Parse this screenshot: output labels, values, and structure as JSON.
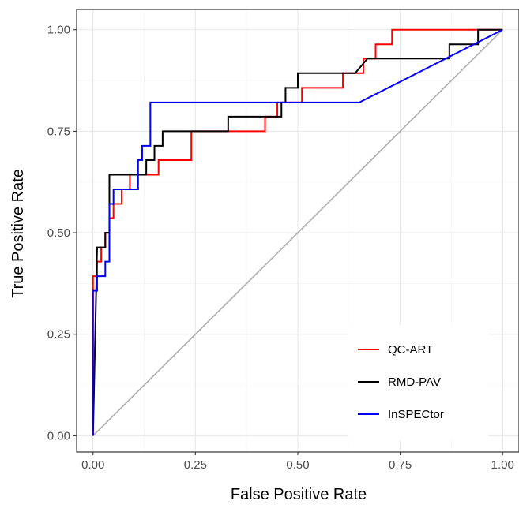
{
  "chart_data": {
    "type": "line",
    "title": "",
    "xlabel": "False Positive Rate",
    "ylabel": "True Positive Rate",
    "xlim": [
      -0.04,
      1.04
    ],
    "ylim": [
      -0.04,
      1.05
    ],
    "x_ticks": [
      "0.00",
      "0.25",
      "0.50",
      "0.75",
      "1.00"
    ],
    "y_ticks": [
      "0.00",
      "0.25",
      "0.50",
      "0.75",
      "1.00"
    ],
    "grid": true,
    "legend_position": "bottom-right",
    "diagonal_reference": {
      "color": "#b3b3b3",
      "points": [
        [
          0,
          0
        ],
        [
          1,
          1
        ]
      ]
    },
    "series": [
      {
        "name": "QC-ART",
        "color": "#ff0000",
        "points": [
          [
            0,
            0
          ],
          [
            0,
            0.393
          ],
          [
            0.01,
            0.393
          ],
          [
            0.01,
            0.429
          ],
          [
            0.02,
            0.429
          ],
          [
            0.02,
            0.464
          ],
          [
            0.03,
            0.464
          ],
          [
            0.03,
            0.5
          ],
          [
            0.04,
            0.5
          ],
          [
            0.04,
            0.536
          ],
          [
            0.05,
            0.536
          ],
          [
            0.05,
            0.571
          ],
          [
            0.07,
            0.571
          ],
          [
            0.07,
            0.607
          ],
          [
            0.09,
            0.607
          ],
          [
            0.09,
            0.643
          ],
          [
            0.16,
            0.643
          ],
          [
            0.16,
            0.679
          ],
          [
            0.24,
            0.679
          ],
          [
            0.24,
            0.75
          ],
          [
            0.42,
            0.75
          ],
          [
            0.42,
            0.786
          ],
          [
            0.45,
            0.786
          ],
          [
            0.45,
            0.821
          ],
          [
            0.51,
            0.821
          ],
          [
            0.51,
            0.857
          ],
          [
            0.61,
            0.857
          ],
          [
            0.61,
            0.893
          ],
          [
            0.66,
            0.893
          ],
          [
            0.66,
            0.929
          ],
          [
            0.69,
            0.929
          ],
          [
            0.69,
            0.964
          ],
          [
            0.73,
            0.964
          ],
          [
            0.73,
            1.0
          ],
          [
            1.0,
            1.0
          ]
        ]
      },
      {
        "name": "RMD-PAV",
        "color": "#000000",
        "points": [
          [
            0,
            0
          ],
          [
            0.01,
            0.464
          ],
          [
            0.03,
            0.464
          ],
          [
            0.03,
            0.5
          ],
          [
            0.04,
            0.5
          ],
          [
            0.04,
            0.643
          ],
          [
            0.13,
            0.643
          ],
          [
            0.13,
            0.679
          ],
          [
            0.15,
            0.679
          ],
          [
            0.15,
            0.714
          ],
          [
            0.17,
            0.714
          ],
          [
            0.17,
            0.75
          ],
          [
            0.33,
            0.75
          ],
          [
            0.33,
            0.786
          ],
          [
            0.46,
            0.786
          ],
          [
            0.46,
            0.821
          ],
          [
            0.47,
            0.821
          ],
          [
            0.47,
            0.857
          ],
          [
            0.5,
            0.857
          ],
          [
            0.5,
            0.893
          ],
          [
            0.64,
            0.893
          ],
          [
            0.67,
            0.929
          ],
          [
            0.87,
            0.929
          ],
          [
            0.87,
            0.964
          ],
          [
            0.94,
            0.964
          ],
          [
            0.94,
            1.0
          ],
          [
            1.0,
            1.0
          ]
        ]
      },
      {
        "name": "InSPECtor",
        "color": "#0000ff",
        "points": [
          [
            0,
            0
          ],
          [
            0,
            0.357
          ],
          [
            0.01,
            0.357
          ],
          [
            0.01,
            0.393
          ],
          [
            0.03,
            0.393
          ],
          [
            0.03,
            0.429
          ],
          [
            0.04,
            0.429
          ],
          [
            0.04,
            0.571
          ],
          [
            0.05,
            0.571
          ],
          [
            0.05,
            0.607
          ],
          [
            0.11,
            0.607
          ],
          [
            0.11,
            0.679
          ],
          [
            0.12,
            0.679
          ],
          [
            0.12,
            0.714
          ],
          [
            0.14,
            0.714
          ],
          [
            0.14,
            0.821
          ],
          [
            0.65,
            0.821
          ],
          [
            1.0,
            1.0
          ]
        ]
      }
    ]
  }
}
